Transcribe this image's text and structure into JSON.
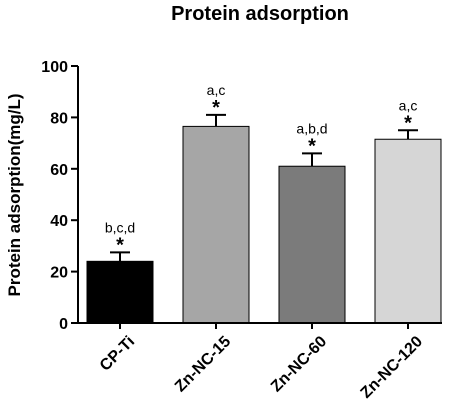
{
  "chart_data": {
    "type": "bar",
    "title": "Protein adsorption",
    "xlabel": "",
    "ylabel": "Protein adsorption(mg/L)",
    "ylim": [
      0,
      100
    ],
    "yticks": [
      0,
      20,
      40,
      60,
      80,
      100
    ],
    "grid": false,
    "categories": [
      "CP-Ti",
      "Zn-NC-15",
      "Zn-NC-60",
      "Zn-NC-120"
    ],
    "values": [
      24,
      76.5,
      61,
      71.5
    ],
    "errors": [
      3.5,
      4.5,
      5,
      3.5
    ],
    "colors": [
      "#000000",
      "#a6a6a6",
      "#7b7b7b",
      "#d6d6d6"
    ],
    "annotations": [
      {
        "letters": "b,c,d",
        "mark": "*"
      },
      {
        "letters": "a,c",
        "mark": "*"
      },
      {
        "letters": "a,b,d",
        "mark": "*"
      },
      {
        "letters": "a,c",
        "mark": "*"
      }
    ]
  }
}
